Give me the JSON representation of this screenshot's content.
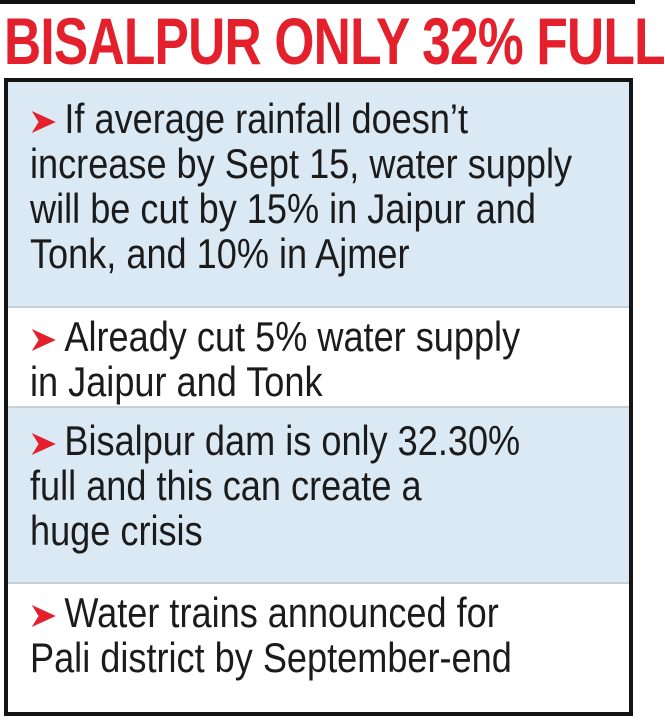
{
  "title": "BISALPUR ONLY 32% FULL",
  "colors": {
    "title": "#e3202b",
    "arrow": "#e3202b",
    "row_alt": "#dbe9f4"
  },
  "bullet_icon": "red-arrowhead-icon",
  "items": [
    {
      "lines": [
        "If average rainfall doesn’t",
        "increase by Sept 15, water supply",
        "will be cut by 15% in Jaipur and",
        "Tonk, and 10% in Ajmer"
      ]
    },
    {
      "lines": [
        "Already cut 5% water supply",
        "in Jaipur and Tonk"
      ]
    },
    {
      "lines": [
        "Bisalpur dam is only 32.30%",
        "full and this can create a",
        "huge crisis"
      ]
    },
    {
      "lines": [
        "Water trains announced for",
        "Pali district by September-end"
      ]
    }
  ]
}
